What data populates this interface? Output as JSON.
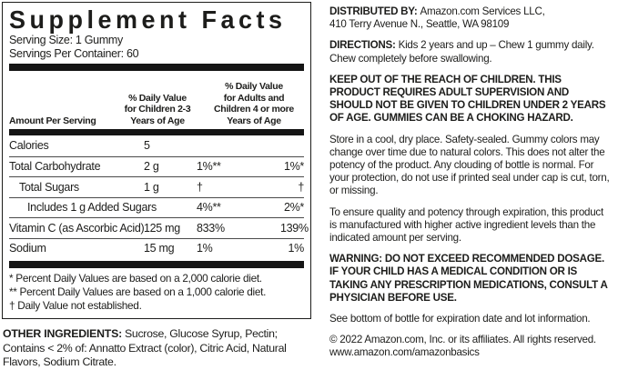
{
  "panel": {
    "title": "Supplement Facts",
    "serving_size": "Serving Size: 1 Gummy",
    "servings_per_container": "Servings Per Container: 60",
    "header": {
      "amount": "Amount Per Serving",
      "dv_children": "% Daily Value\nfor Children 2-3\nYears of Age",
      "dv_adults": "% Daily Value\nfor Adults and\nChildren 4 or more\nYears of Age"
    },
    "rows": [
      {
        "name": "Calories",
        "amount": "5",
        "dv1": "",
        "dv2": ""
      },
      {
        "name": "Total Carbohydrate",
        "amount": "2 g",
        "dv1": "1%**",
        "dv2": "1%*"
      },
      {
        "name": "Total Sugars",
        "amount": "1 g",
        "dv1": "†",
        "dv2": "†"
      },
      {
        "name": "Includes 1 g Added Sugars",
        "amount": "",
        "dv1": "4%**",
        "dv2": "2%*"
      },
      {
        "name": "Vitamin C (as Ascorbic Acid)",
        "amount": "125 mg",
        "dv1": "833%",
        "dv2": "139%"
      },
      {
        "name": "Sodium",
        "amount": "15 mg",
        "dv1": "1%",
        "dv2": "1%"
      }
    ],
    "footnotes": [
      "* Percent Daily Values are based on a 2,000 calorie diet.",
      "** Percent Daily Values are based on a 1,000 calorie diet.",
      "† Daily Value not established."
    ]
  },
  "other_ingredients": {
    "label": "OTHER INGREDIENTS:",
    "text": "Sucrose, Glucose Syrup, Pectin; Contains < 2% of: Annatto Extract (color), Citric Acid, Natural Flavors, Sodium Citrate."
  },
  "right": {
    "distributed_by": {
      "label": "DISTRIBUTED BY:",
      "text": "Amazon.com Services LLC,\n410 Terry Avenue N., Seattle, WA 98109"
    },
    "directions": {
      "label": "DIRECTIONS:",
      "text": "Kids 2 years and up – Chew 1 gummy daily. Chew completely before swallowing."
    },
    "keep_out": "KEEP OUT OF THE REACH OF CHILDREN. THIS PRODUCT REQUIRES ADULT SUPERVISION AND SHOULD NOT BE GIVEN TO CHILDREN UNDER 2 YEARS OF AGE. GUMMIES CAN BE A CHOKING HAZARD.",
    "storage": "Store in a cool, dry place. Safety-sealed. Gummy colors may change over time due to natural colors. This does not alter the potency of the product. Any clouding of bottle is normal. For your protection, do not use if printed seal under cap is cut, torn, or missing.",
    "quality": "To ensure quality and potency through expiration, this product is manufactured with higher active ingredient levels than the indicated amount per serving.",
    "warning": {
      "label": "WARNING:",
      "text": "DO NOT EXCEED RECOMMENDED DOSAGE. IF YOUR CHILD HAS A MEDICAL CONDITION OR IS TAKING ANY PRESCRIPTION MEDICATIONS, CONSULT A PHYSICIAN BEFORE USE."
    },
    "expiration": "See bottom of bottle for expiration date and lot information.",
    "copyright": "© 2022 Amazon.com, Inc. or its affiliates. All rights reserved.\nwww.amazon.com/amazonbasics"
  },
  "colors": {
    "text": "#1d1d1b",
    "bar": "#151515",
    "background": "#ffffff"
  }
}
